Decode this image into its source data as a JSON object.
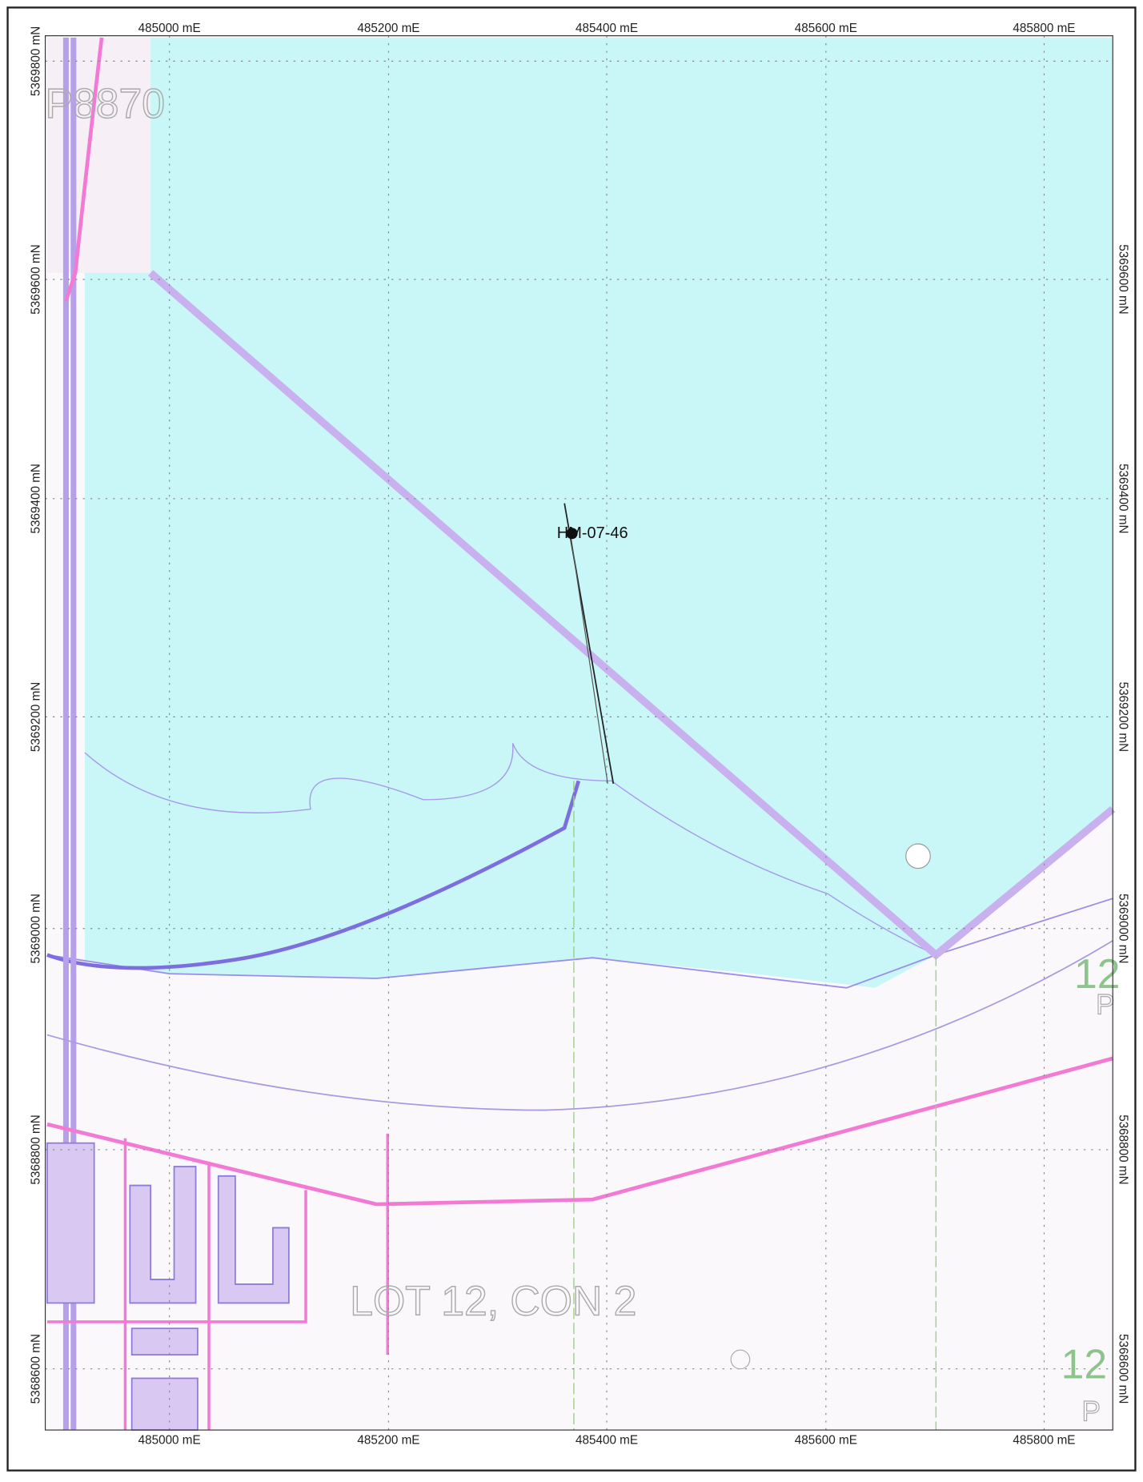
{
  "map": {
    "easting_labels_top": [
      "485000 mE",
      "485200 mE",
      "485400 mE",
      "485600 mE",
      "485800 mE"
    ],
    "easting_labels_bottom": [
      "485000 mE",
      "485200 mE",
      "485400 mE",
      "485600 mE",
      "485800 mE"
    ],
    "northing_labels_left": [
      "5369800 mN",
      "5369600 mN",
      "5369400 mN",
      "5369200 mN",
      "5369000 mN",
      "5368800 mN",
      "5368600 mN"
    ],
    "northing_labels_right": [
      "5369600 mN",
      "5369400 mN",
      "5369200 mN",
      "5369000 mN",
      "5368800 mN",
      "5368600 mN"
    ],
    "parcel_label": "P8870",
    "hole_label": "HM-07-46",
    "lot_label": "LOT 12, CON 2",
    "lot_number_labels": [
      "12",
      "12"
    ],
    "plan_letters": [
      "P",
      "P"
    ]
  }
}
